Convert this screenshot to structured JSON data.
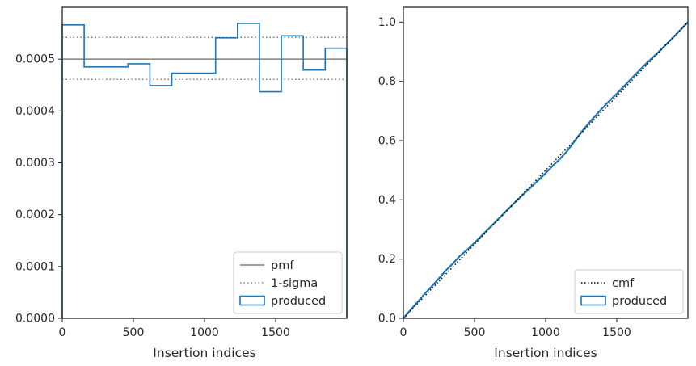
{
  "chart_data": [
    {
      "type": "line",
      "xlabel": "Insertion indices",
      "ylabel": "",
      "xlim": [
        0,
        2000
      ],
      "ylim": [
        0,
        0.0006
      ],
      "xticks": [
        0,
        500,
        1000,
        1500
      ],
      "xtick_labels": [
        "0",
        "500",
        "1000",
        "1500"
      ],
      "yticks": [
        0,
        0.0001,
        0.0002,
        0.0003,
        0.0004,
        0.0005
      ],
      "ytick_labels": [
        "0.0000",
        "0.0001",
        "0.0002",
        "0.0003",
        "0.0004",
        "0.0005"
      ],
      "legend_position": "bottom-right",
      "legend": [
        "pmf",
        "1-sigma",
        "produced"
      ],
      "pmf": 0.0005,
      "sigma_upper": 0.000542,
      "sigma_lower": 0.000461,
      "histogram": {
        "name": "produced",
        "bin_edges": [
          0,
          154,
          462,
          616,
          770,
          1078,
          1232,
          1386,
          1540,
          1694,
          1848,
          2000
        ],
        "values": [
          0.000566,
          0.000485,
          0.000491,
          0.000449,
          0.000473,
          0.000541,
          0.000569,
          0.000437,
          0.000545,
          0.000479,
          0.000521
        ]
      },
      "colors": {
        "pmf": "#808080",
        "sigma": "#808080",
        "produced": "#1f77b4"
      }
    },
    {
      "type": "line",
      "xlabel": "Insertion indices",
      "ylabel": "",
      "xlim": [
        0,
        2000
      ],
      "ylim": [
        0,
        1.05
      ],
      "xticks": [
        0,
        500,
        1000,
        1500
      ],
      "xtick_labels": [
        "0",
        "500",
        "1000",
        "1500"
      ],
      "yticks": [
        0,
        0.2,
        0.4,
        0.6,
        0.8,
        1.0
      ],
      "ytick_labels": [
        "0.0",
        "0.2",
        "0.4",
        "0.6",
        "0.8",
        "1.0"
      ],
      "legend_position": "bottom-right",
      "legend": [
        "cmf",
        "produced"
      ],
      "series": [
        {
          "name": "cmf",
          "x": [
            0,
            2000
          ],
          "y": [
            0,
            1.0
          ]
        },
        {
          "name": "produced",
          "x": [
            0,
            50,
            100,
            150,
            200,
            250,
            300,
            350,
            400,
            450,
            500,
            600,
            700,
            800,
            900,
            1000,
            1050,
            1100,
            1150,
            1200,
            1250,
            1300,
            1350,
            1400,
            1450,
            1500,
            1600,
            1700,
            1800,
            1900,
            2000
          ],
          "y": [
            0,
            0.028,
            0.055,
            0.083,
            0.108,
            0.135,
            0.162,
            0.186,
            0.212,
            0.232,
            0.255,
            0.303,
            0.351,
            0.399,
            0.444,
            0.49,
            0.515,
            0.538,
            0.564,
            0.596,
            0.628,
            0.657,
            0.684,
            0.71,
            0.735,
            0.758,
            0.808,
            0.857,
            0.902,
            0.95,
            1.0
          ]
        }
      ],
      "colors": {
        "cmf": "#000000",
        "produced": "#1f77b4"
      }
    }
  ]
}
